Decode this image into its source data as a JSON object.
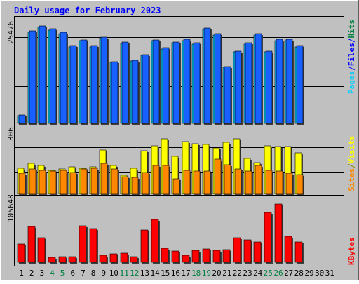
{
  "chart_data": {
    "type": "bar",
    "title": "Daily usage for February 2023",
    "categories": [
      "1",
      "2",
      "3",
      "4",
      "5",
      "6",
      "7",
      "8",
      "9",
      "10",
      "11",
      "12",
      "13",
      "14",
      "15",
      "16",
      "17",
      "18",
      "19",
      "20",
      "21",
      "22",
      "23",
      "24",
      "25",
      "26",
      "27",
      "28",
      "29",
      "30",
      "31"
    ],
    "weekend_days": [
      "4",
      "5",
      "11",
      "12",
      "18",
      "19",
      "25",
      "26"
    ],
    "panels": [
      {
        "name": "pages-files-hits",
        "ymax": 25476,
        "ymax_label": "25476",
        "axis_label_parts": [
          {
            "text": "Pages",
            "color": "#00ccff"
          },
          {
            "text": "/",
            "color": "#0000ff"
          },
          {
            "text": "Files",
            "color": "#0000ff"
          },
          {
            "text": "/",
            "color": "#0000ff"
          },
          {
            "text": "Hits",
            "color": "#008040"
          }
        ],
        "series": [
          {
            "name": "Pages",
            "color": "#00ccff",
            "values": [
              1900,
              22300,
              23400,
              22700,
              21900,
              18700,
              20100,
              18600,
              20800,
              14900,
              19500,
              15200,
              16500,
              20100,
              18200,
              19600,
              20200,
              19300,
              22900,
              21600,
              13600,
              17400,
              19300,
              21600,
              17400,
              20200,
              20200,
              18700
            ]
          },
          {
            "name": "Hits",
            "color": "#1860ff",
            "values": [
              2000,
              22600,
              23700,
              23000,
              22200,
              18900,
              20400,
              18900,
              21100,
              15100,
              19800,
              15400,
              16800,
              20400,
              18500,
              19900,
              20500,
              19600,
              23200,
              21900,
              13800,
              17600,
              19600,
              21900,
              17600,
              20500,
              20500,
              18900
            ]
          }
        ]
      },
      {
        "name": "visits-sites",
        "ymax": 306,
        "ymax_label": "306",
        "axis_label_parts": [
          {
            "text": "Sites",
            "color": "#ff8800"
          },
          {
            "text": "/",
            "color": "#8a8a00"
          },
          {
            "text": "Visits",
            "color": "#ffff00"
          }
        ],
        "series": [
          {
            "name": "Visits",
            "color": "#ffff00",
            "values": [
              120,
              140,
              130,
              110,
              115,
              125,
              120,
              125,
              205,
              130,
              85,
              120,
              200,
              225,
              255,
              175,
              245,
              235,
              230,
              215,
              240,
              255,
              165,
              145,
              225,
              220,
              220,
              190
            ]
          },
          {
            "name": "Sites",
            "color": "#ff8800",
            "values": [
              95,
              115,
              110,
              105,
              110,
              100,
              115,
              120,
              140,
              115,
              80,
              75,
              100,
              130,
              130,
              70,
              110,
              105,
              105,
              160,
              135,
              115,
              105,
              130,
              110,
              105,
              95,
              90
            ]
          }
        ]
      },
      {
        "name": "kbytes",
        "ymax": 105648,
        "ymax_label": "105648",
        "axis_label_parts": [
          {
            "text": "KBytes",
            "color": "#ff0000"
          }
        ],
        "series": [
          {
            "name": "KBytes",
            "color": "#ff0000",
            "values": [
              30000,
              58000,
              40000,
              8500,
              9000,
              9500,
              60000,
              55000,
              11000,
              13500,
              15000,
              9500,
              52500,
              70500,
              23000,
              17800,
              12000,
              20000,
              22000,
              20000,
              20500,
              40000,
              37000,
              33000,
              82000,
              95000,
              42000,
              33000
            ]
          }
        ]
      }
    ]
  }
}
